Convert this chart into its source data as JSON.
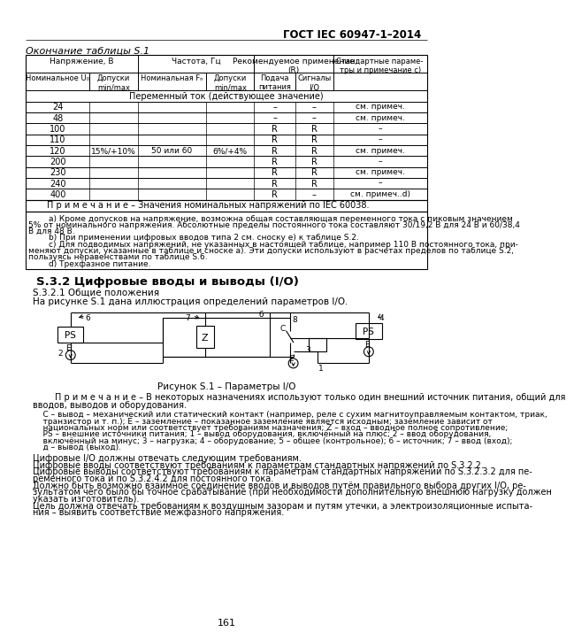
{
  "page_title": "ГОСТ IEC 60947-1–2014",
  "table_title": "Окончание таблицы S.1",
  "page_number": "161",
  "background_color": "#ffffff",
  "section_header": "S.3.2 Цифровые вводы и выводы (I/O)",
  "section_sub": "S.3.2.1 Общие положения",
  "section_text": "На рисунке S.1 дана иллюстрация определений параметров I/O.",
  "ac_header": "Переменный ток (действующее значение)",
  "voltages": [
    "24",
    "48",
    "100",
    "110",
    "120",
    "200",
    "230",
    "240",
    "400"
  ],
  "tolerance": "15%/+10%",
  "freq": "50 или 60",
  "freq_tol": "6%/+4%",
  "power_supply": [
    "–",
    "–",
    "R",
    "R",
    "R",
    "R",
    "R",
    "R",
    "R"
  ],
  "signals": [
    "–",
    "–",
    "R",
    "R",
    "R",
    "R",
    "R",
    "R",
    "–"
  ],
  "notes_col": [
    "см. примеч.",
    "см. примеч.",
    "–",
    "–",
    "см. примеч.",
    "–",
    "см. примеч.",
    "–",
    "см. примеч..d)"
  ],
  "table_note": "П р и м е ч а н и е – Значения номинальных напряжений по IEC 60038.",
  "note_a": "        a) Кроме допусков на напряжение, возможна общая составляющая переменного тока с пиковым значением",
  "note_a2": "5% от номинального напряжения. Абсолютные пределы постоянного тока составляют 30/19,2 В для 24 В и 60/38,4",
  "note_a3": "В для 48 В.",
  "note_b": "        b) При применении цифровых вводов типа 2 см. сноску e) к таблице S.2.",
  "note_c": "        c) Для подводимых напряжений, не указанных в настоящей таблице, например 110 В постоянного тока, при-",
  "note_c2": "меняют допуски, указанные в таблице и сноске a). Эти допуски используют в расчетах пределов по таблице S.2,",
  "note_c3": "пользуясь неравенствами по таблице S.6.",
  "note_d": "        d) Трехфазное питание.",
  "figure_caption": "Рисунок S.1 – Параметры I/O",
  "remark_note": "        П р и м е ч а н и е – В некоторых назначениях используют только один внешний источник питания, общий для",
  "remark_note2": "вводов, выводов и оборудования.",
  "legend_lines": [
    "    C – вывод – механический или статический контакт (например, реле с сухим магнитоуправляемым контактом, триак,",
    "    транзистор и т. п.); E – заземление – показанное заземление является исходным; заземление зависит от",
    "    национальных норм или соответствует требованиям назначения; Z – вход – вводное полное сопротивление;",
    "    PS – внешние источники питания; 1 – вывод оборудования, включённый на плюс; 2 – ввод оборудования,",
    "    включённый на минус; 3 – нагрузка; 4 – оборудование; 5 – общее (контрольное); 6 – источник; 7 – ввод (вход);",
    "    д – вывод (выход)."
  ],
  "bottom_texts": [
    "Цифровые I/O должны отвечать следующим требованиям.",
    "Цифровые вводы соответствуют требованиям к параметрам стандартных напряжений по S.3.2.2.",
    "Цифровые выводы соответствуют требованиям к параметрам стандартных напряжений по S.3.2.3.2 для пе-",
    "ременного тока и по S.3.2.4.2 для постоянного тока.",
    "Должно быть возможно взаимное соединение вводов и выводов путём правильного выбора других I/O, ре-",
    "зультатом чего было бы точное срабатывание (при необходимости дополнительную внешнюю нагрузку должен",
    "указать изготовитель).",
    "Цель должна отвечать требованиям к воздушным зазорам и путям утечки, а электроизоляционные испыта-",
    "ния – выявить соответствие межфазного напряжения."
  ]
}
